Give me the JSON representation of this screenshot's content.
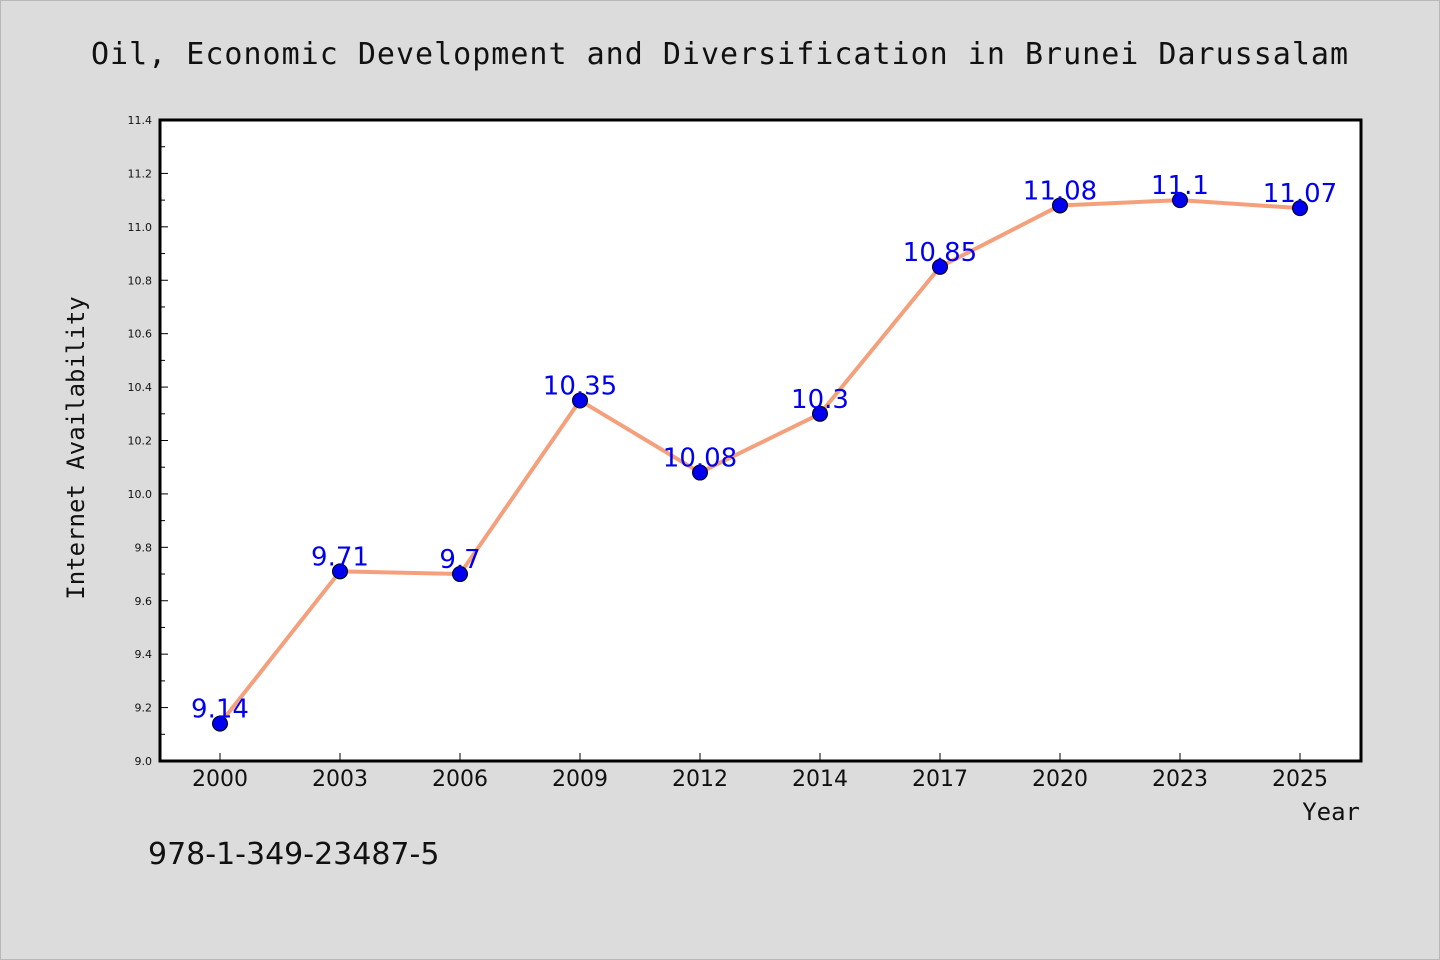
{
  "chart_data": {
    "type": "line",
    "title": "Oil, Economic Development and Diversification in Brunei Darussalam",
    "xlabel": "Year",
    "ylabel": "Internet Availability",
    "categories": [
      "2000",
      "2003",
      "2006",
      "2009",
      "2012",
      "2014",
      "2017",
      "2020",
      "2023",
      "2025"
    ],
    "series": [
      {
        "values": [
          9.14,
          9.71,
          9.7,
          10.35,
          10.08,
          10.3,
          10.85,
          11.08,
          11.1,
          11.07
        ],
        "labels": [
          "9.14",
          "9.71",
          "9.7",
          "10.35",
          "10.08",
          "10.3",
          "10.85",
          "11.08",
          "11.1",
          "11.07"
        ]
      }
    ],
    "ylim": [
      9.0,
      11.4
    ],
    "yticks": [
      "9.0",
      "9.2",
      "9.4",
      "9.6",
      "9.8",
      "10.0",
      "10.2",
      "10.4",
      "10.6",
      "10.8",
      "11.0",
      "11.2",
      "11.4"
    ],
    "grid": false,
    "line_color": "#f4a07c",
    "marker_color": "#0000ee",
    "label_color": "#0000ee",
    "background_color": "#dcdcdc"
  },
  "footer": {
    "isbn": "978-1-349-23487-5"
  }
}
